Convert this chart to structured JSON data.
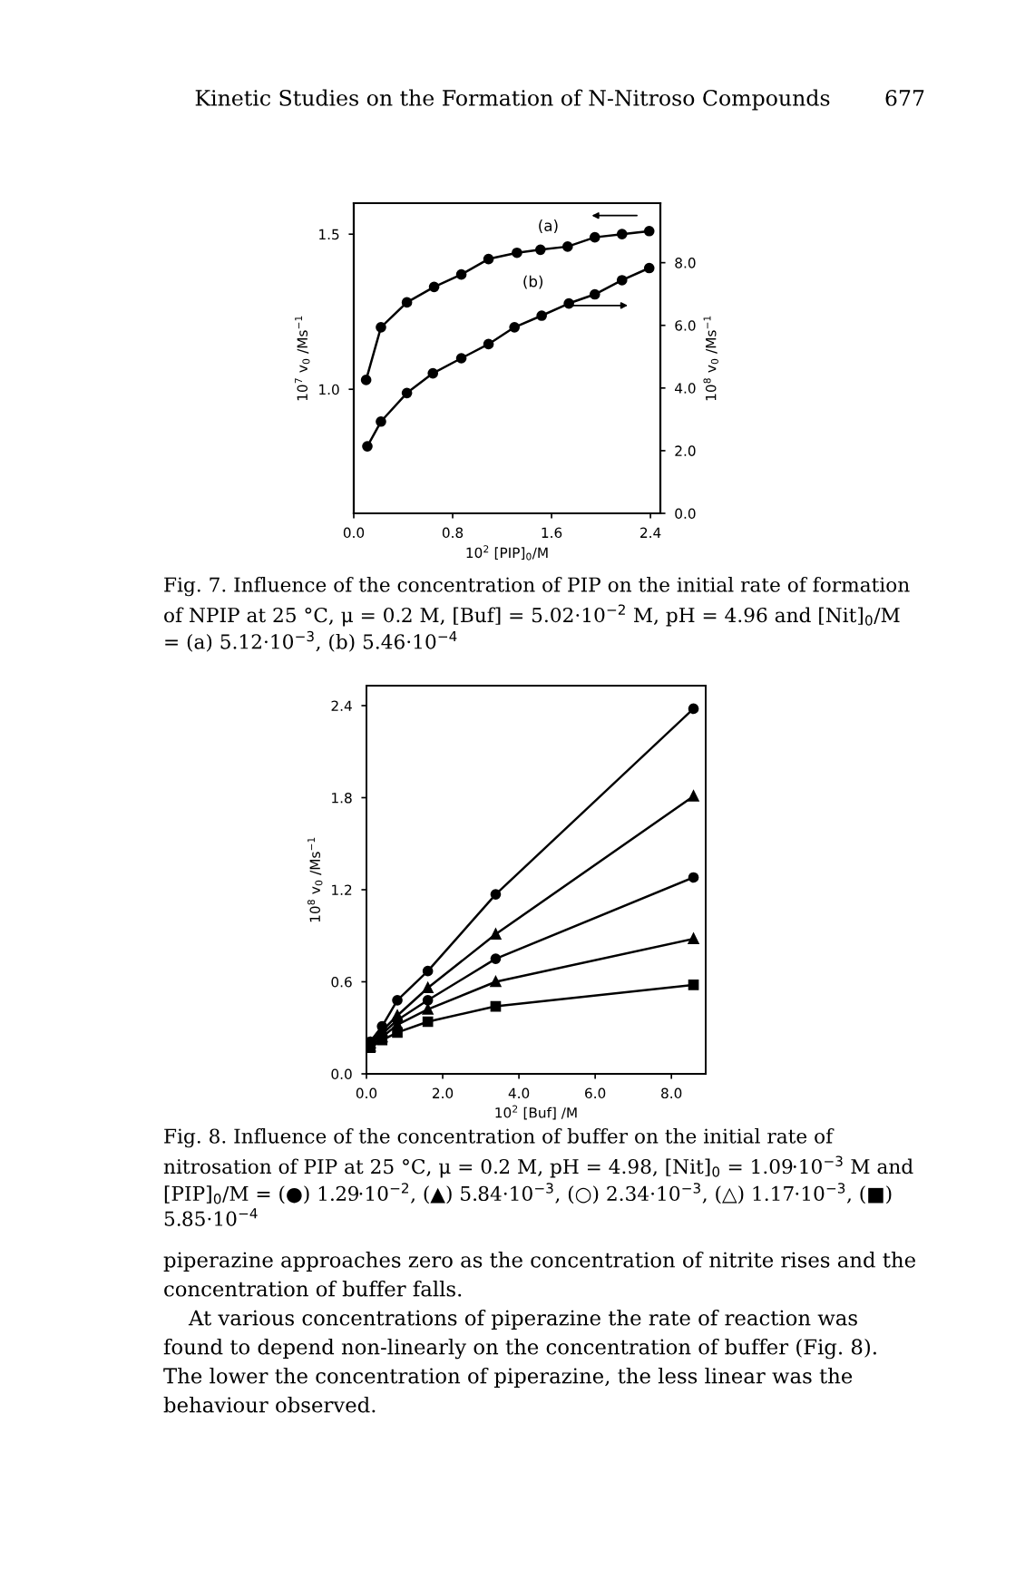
{
  "chart_data": [
    {
      "type": "line",
      "xlabel": "10$^{2}$ [PIP]$_{0}$/M",
      "ylabel": "10$^{7}$ v$_{0}$ /Ms$^{−1}$",
      "y2label": "10$^{8}$ v$_{0}$ /Ms$^{−1}$",
      "xlim": [
        0,
        2.48
      ],
      "xticks": [
        {
          "value": 0,
          "label": "0.0"
        },
        0.8,
        1.6,
        2.4
      ],
      "ylim": [
        0.6,
        1.6
      ],
      "yticks": [
        {
          "value": 1,
          "label": "1.0"
        },
        1.5
      ],
      "y2lim": [
        0,
        9.9
      ],
      "y2ticks": [
        {
          "value": 0,
          "label": "0.0"
        },
        {
          "value": 2,
          "label": "2.0"
        },
        {
          "value": 4,
          "label": "4.0"
        },
        {
          "value": 6,
          "label": "6.0"
        },
        {
          "value": 8,
          "label": "8.0"
        }
      ],
      "marker": "circle",
      "grid": false,
      "legend": false,
      "series": [
        {
          "axis": "y",
          "color": "#000000",
          "x": [
            0.1,
            0.22,
            0.43,
            0.65,
            0.87,
            1.09,
            1.32,
            1.51,
            1.73,
            1.95,
            2.17,
            2.39
          ],
          "values": [
            1.03,
            1.2,
            1.28,
            1.33,
            1.37,
            1.42,
            1.44,
            1.45,
            1.46,
            1.49,
            1.5,
            1.51
          ]
        },
        {
          "axis": "y2",
          "color": "#000000",
          "x": [
            0.11,
            0.22,
            0.43,
            0.64,
            0.87,
            1.09,
            1.3,
            1.52,
            1.74,
            1.95,
            2.17,
            2.39
          ],
          "values": [
            2.14,
            2.93,
            3.84,
            4.47,
            4.95,
            5.4,
            5.94,
            6.31,
            6.7,
            6.99,
            7.44,
            7.83
          ]
        }
      ],
      "annotations": [
        "Kinetic Studies on the Formation of N-Nitroso Compounds",
        "677",
        "Fig. 7. Influence of the concentration of PIP on the initial rate of formation of NPIP at 25 °C, μ = 0.2 M, [Buf] = 5.02·10$^{−2}$ M, pH = 4.96 and [Nit]$_{0}$/M = (a) 5.12·10$^{−3}$, (b) 5.46·10$^{−4}$",
        "(a)",
        "(b)"
      ]
    },
    {
      "type": "line",
      "xlabel": "10$^{2}$ [Buf] /M",
      "ylabel": "10$^{8}$ v$_{0}$ /Ms$^{−1}$",
      "xlim": [
        0,
        8.9
      ],
      "xticks": [
        {
          "value": 0,
          "label": "0.0"
        },
        {
          "value": 2,
          "label": "2.0"
        },
        {
          "value": 4,
          "label": "4.0"
        },
        {
          "value": 6,
          "label": "6.0"
        },
        {
          "value": 8,
          "label": "8.0"
        }
      ],
      "ylim": [
        0,
        2.53
      ],
      "yticks": [
        {
          "value": 0,
          "label": "0.0"
        },
        0.6,
        1.2,
        1.8,
        2.4
      ],
      "grid": false,
      "legend": false,
      "series": [
        {
          "color": "#000000",
          "marker": "circle",
          "x": [
            0.1,
            0.41,
            0.81,
            1.61,
            3.39,
            8.58
          ],
          "values": [
            0.21,
            0.31,
            0.48,
            0.67,
            1.17,
            2.38
          ]
        },
        {
          "color": "#000000",
          "marker": "triangle",
          "x": [
            0.1,
            0.41,
            0.81,
            1.61,
            3.39,
            8.58
          ],
          "values": [
            0.2,
            0.28,
            0.38,
            0.56,
            0.91,
            1.81
          ]
        },
        {
          "color": "#000000",
          "marker": "circle",
          "x": [
            0.1,
            0.41,
            0.81,
            1.61,
            3.39,
            8.58
          ],
          "values": [
            0.19,
            0.26,
            0.35,
            0.48,
            0.75,
            1.28
          ]
        },
        {
          "color": "#000000",
          "marker": "triangle",
          "x": [
            0.1,
            0.41,
            0.81,
            1.61,
            3.39,
            8.58
          ],
          "values": [
            0.18,
            0.24,
            0.32,
            0.42,
            0.6,
            0.88
          ]
        },
        {
          "color": "#000000",
          "marker": "square",
          "x": [
            0.1,
            0.41,
            0.81,
            1.61,
            3.39,
            8.58
          ],
          "values": [
            0.17,
            0.22,
            0.27,
            0.34,
            0.44,
            0.58
          ]
        }
      ],
      "annotations": [
        "Fig. 8. Influence of the concentration of buffer on the initial rate of nitrosation of PIP at 25 °C, μ = 0.2 M, pH = 4.98, [Nit]$_{0}$ = 1.09·10$^{−3}$ M and [PIP]$_{0}$/M = (●) 1.29·10$^{−2}$, (▲) 5.84·10$^{−3}$, (○) 2.34·10$^{−3}$, (△) 1.17·10$^{−3}$, (■) 5.85·10$^{−4}$",
        "piperazine approaches zero as the concentration of nitrite rises and the concentration of buffer falls.",
        "At various concentrations of piperazine the rate of reaction was found to depend non-linearly on the concentration of buffer (Fig. 8). The lower the concentration of piperazine, the less linear was the behaviour observed."
      ]
    }
  ]
}
